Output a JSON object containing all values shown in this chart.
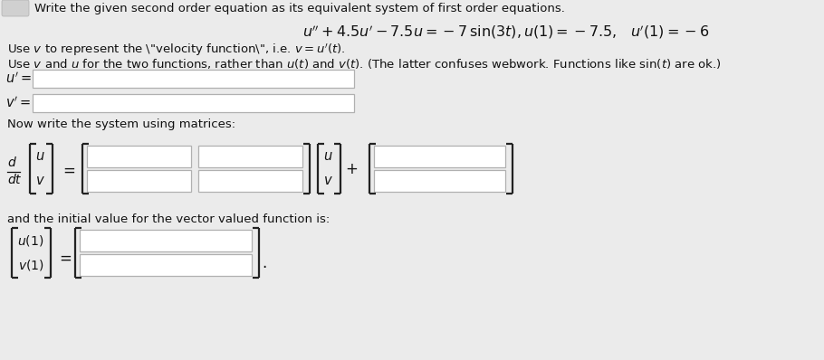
{
  "background_color": "#ebebeb",
  "title_text": "Write the given second order equation as its equivalent system of first order equations.",
  "input_box_color": "#ffffff",
  "input_box_edge": "#b0b0b0",
  "bracket_color": "#222222",
  "text_color": "#111111",
  "font_size_title": 9.5,
  "font_size_text": 9.5,
  "font_size_label": 10,
  "font_size_eq": 11
}
